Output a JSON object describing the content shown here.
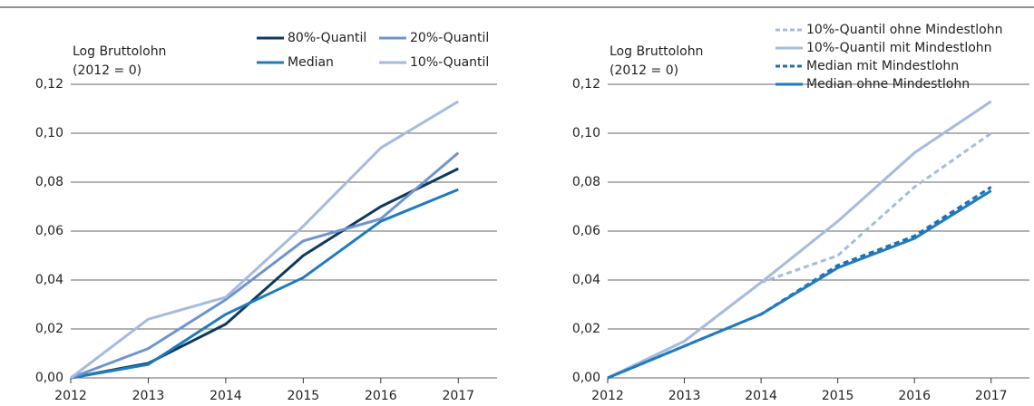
{
  "chart_data": [
    {
      "type": "line",
      "y_label": "Log Bruttolohn",
      "y_label_note": "(2012 = 0)",
      "x": [
        2012,
        2013,
        2014,
        2015,
        2016,
        2017
      ],
      "xlim": [
        2012,
        2017.5
      ],
      "xticks": [
        2012,
        2013,
        2014,
        2015,
        2016,
        2017
      ],
      "ylim": [
        0,
        0.12
      ],
      "yticks": [
        {
          "value": 0,
          "label": "0,00"
        },
        {
          "value": 0.02,
          "label": "0,02"
        },
        {
          "value": 0.04,
          "label": "0,04"
        },
        {
          "value": 0.06,
          "label": "0,06"
        },
        {
          "value": 0.08,
          "label": "0,08"
        },
        {
          "value": 0.1,
          "label": "0,10"
        },
        {
          "value": 0.12,
          "label": "0,12"
        }
      ],
      "grid": true,
      "legend": "upper right",
      "legend_columns": 2,
      "series": [
        {
          "name": "80%-Quantil",
          "color": "#0e3a5e",
          "dashed": false,
          "values": [
            0,
            0.006,
            0.022,
            0.05,
            0.07,
            0.0855
          ]
        },
        {
          "name": "Median",
          "color": "#1f7bbd",
          "dashed": false,
          "values": [
            0,
            0.0055,
            0.026,
            0.041,
            0.064,
            0.077
          ]
        },
        {
          "name": "20%-Quantil",
          "color": "#6f93cf",
          "dashed": false,
          "values": [
            0,
            0.012,
            0.032,
            0.056,
            0.065,
            0.092
          ]
        },
        {
          "name": "10%-Quantil",
          "color": "#a6bbdd",
          "dashed": false,
          "values": [
            0,
            0.024,
            0.033,
            0.062,
            0.094,
            0.113
          ]
        }
      ]
    },
    {
      "type": "line",
      "y_label": "Log Bruttolohn",
      "y_label_note": "(2012 = 0)",
      "x": [
        2012,
        2013,
        2014,
        2015,
        2016,
        2017
      ],
      "xlim": [
        2012,
        2017.5
      ],
      "xticks": [
        2012,
        2013,
        2014,
        2015,
        2016,
        2017
      ],
      "ylim": [
        0,
        0.12
      ],
      "yticks": [
        {
          "value": 0,
          "label": "0,00"
        },
        {
          "value": 0.02,
          "label": "0,02"
        },
        {
          "value": 0.04,
          "label": "0,04"
        },
        {
          "value": 0.06,
          "label": "0,06"
        },
        {
          "value": 0.08,
          "label": "0,08"
        },
        {
          "value": 0.1,
          "label": "0,10"
        },
        {
          "value": 0.12,
          "label": "0,12"
        }
      ],
      "grid": true,
      "legend": "upper right",
      "legend_columns": 1,
      "series": [
        {
          "name": "10%-Quantil ohne Mindestlohn",
          "color": "#a6bbdd",
          "dashed": true,
          "values": [
            0,
            0.015,
            0.039,
            0.05,
            0.078,
            0.1
          ]
        },
        {
          "name": "10%-Quantil mit Mindestlohn",
          "color": "#a6bbdd",
          "dashed": false,
          "values": [
            0,
            0.015,
            0.039,
            0.064,
            0.092,
            0.113
          ]
        },
        {
          "name": "Median mit Mindestlohn",
          "color": "#1f6fb2",
          "dashed": true,
          "values": [
            0,
            0.013,
            0.026,
            0.046,
            0.058,
            0.078
          ]
        },
        {
          "name": "Median ohne Mindestlohn",
          "color": "#1f7bbd",
          "dashed": false,
          "values": [
            0,
            0.013,
            0.026,
            0.045,
            0.057,
            0.0765
          ]
        }
      ]
    }
  ]
}
